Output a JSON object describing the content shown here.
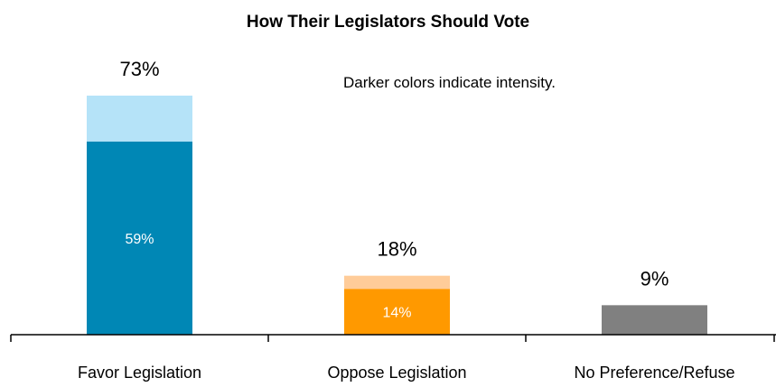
{
  "chart_data": {
    "type": "bar",
    "title": "How Their Legislators Should Vote",
    "annotation": "Darker colors indicate intensity.",
    "categories": [
      "Favor Legislation",
      "Oppose Legislation",
      "No Preference/Refuse"
    ],
    "series": [
      {
        "values": [
          59,
          14,
          9
        ]
      },
      {
        "values": [
          14,
          4,
          null
        ]
      }
    ],
    "totals": [
      73,
      18,
      9
    ],
    "value_labels": {
      "totals": [
        "73%",
        "18%",
        "9%"
      ],
      "inner": [
        "59%",
        "14%",
        null
      ]
    },
    "stacked": true,
    "ylim": [
      0,
      73
    ],
    "grid": false,
    "colors": {
      "dark": [
        "#0087B5",
        "#FF9900",
        "#808080"
      ],
      "light": [
        "#B5E3F8",
        "#FFCC99",
        "#808080"
      ]
    }
  }
}
